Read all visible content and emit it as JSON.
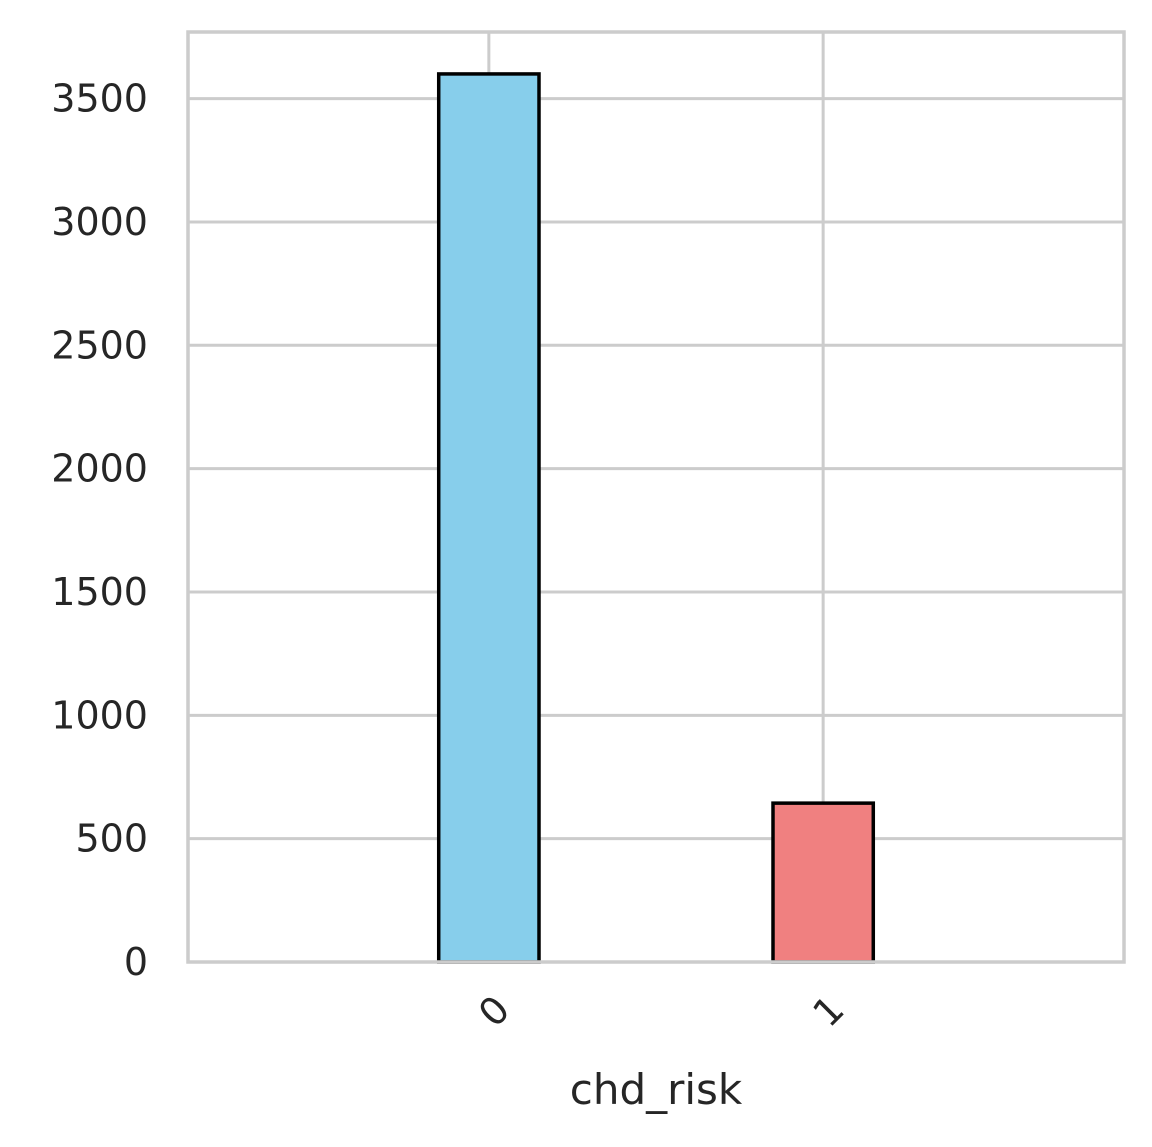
{
  "chart_data": {
    "type": "bar",
    "categories": [
      "0",
      "1"
    ],
    "values": [
      3600,
      644
    ],
    "colors": [
      "#87ceeb",
      "#f08080"
    ],
    "xlabel": "chd_risk",
    "ylabel": "",
    "title": "",
    "ylim": [
      0,
      3770
    ],
    "yticks": [
      0,
      500,
      1000,
      1500,
      2000,
      2500,
      3000,
      3500
    ],
    "grid": true,
    "xtick_rotation": "45",
    "bar_edge_color": "#000000",
    "grid_color": "#cccccc",
    "text_color": "#262626"
  }
}
